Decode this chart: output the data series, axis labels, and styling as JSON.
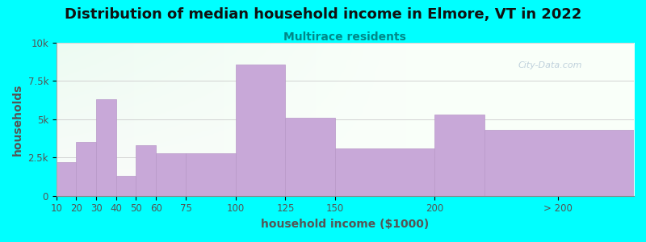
{
  "title": "Distribution of median household income in Elmore, VT in 2022",
  "subtitle": "Multirace residents",
  "xlabel": "household income ($1000)",
  "ylabel": "households",
  "background_outer": "#00FFFF",
  "bar_color": "#c8a8d8",
  "bar_edge_color": "#b898c8",
  "bin_edges": [
    10,
    20,
    30,
    40,
    50,
    60,
    75,
    100,
    125,
    150,
    200,
    225,
    300
  ],
  "values": [
    2200,
    3500,
    6300,
    1300,
    3300,
    2800,
    2800,
    8600,
    5100,
    3100,
    5300,
    4300
  ],
  "xtick_positions": [
    10,
    20,
    30,
    40,
    50,
    60,
    75,
    100,
    125,
    150,
    200,
    262
  ],
  "xtick_labels": [
    "10",
    "20",
    "30",
    "40",
    "50",
    "60",
    "75",
    "100",
    "125",
    "150",
    "200",
    "> 200"
  ],
  "ylim": [
    0,
    10000
  ],
  "yticks": [
    0,
    2500,
    5000,
    7500,
    10000
  ],
  "ytick_labels": [
    "0",
    "2.5k",
    "5k",
    "7.5k",
    "10k"
  ],
  "xlim": [
    10,
    300
  ],
  "title_fontsize": 13,
  "subtitle_fontsize": 10,
  "axis_label_fontsize": 10,
  "tick_fontsize": 8.5,
  "watermark": "City-Data.com"
}
